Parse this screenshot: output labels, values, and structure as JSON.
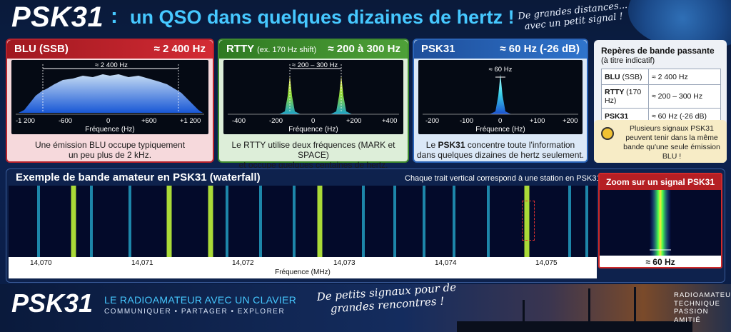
{
  "header": {
    "title": "PSK31",
    "colon": ":",
    "subtitle": "un QSO dans quelques dizaines de hertz !",
    "tagline": "De grandes distances... avec un petit signal !"
  },
  "panels": {
    "blu": {
      "title": "BLU (SSB)",
      "bandwidth": "≈ 2 400 Hz",
      "marker": "≈ 2 400 Hz",
      "ticks": [
        "-1 200",
        "-600",
        "0",
        "+600",
        "+1 200"
      ],
      "xlabel": "Fréquence (Hz)",
      "caption_1": "Une émission BLU occupe typiquement",
      "caption_2": "un peu plus de 2 kHz."
    },
    "rtty": {
      "title": "RTTY",
      "title_note": "(ex. 170 Hz shift)",
      "bandwidth": "≈ 200 à 300 Hz",
      "marker": "≈ 200 – 300 Hz",
      "ticks": [
        "-400",
        "-200",
        "0",
        "+200",
        "+400"
      ],
      "xlabel": "Fréquence (Hz)",
      "caption_1": "Le RTTY utilise deux fréquences (MARK et SPACE)",
      "caption_2": "et occupe quelques centaines de hertz."
    },
    "psk": {
      "title": "PSK31",
      "bandwidth": "≈ 60 Hz (-26 dB)",
      "marker": "≈ 60 Hz",
      "ticks": [
        "-200",
        "-100",
        "0",
        "+100",
        "+200"
      ],
      "xlabel": "Fréquence (Hz)",
      "caption_1a": "Le ",
      "caption_1b": "PSK31",
      "caption_1c": " concentre toute l'information",
      "caption_2": "dans quelques dizaines de hertz seulement."
    }
  },
  "reference": {
    "title": "Repères de bande passante",
    "subtitle": "(à titre indicatif)",
    "rows": [
      {
        "mode": "BLU",
        "note": "(SSB)",
        "value": "≈ 2 400 Hz"
      },
      {
        "mode": "RTTY",
        "note": "(170 Hz)",
        "value": "≈ 200 – 300 Hz"
      },
      {
        "mode": "PSK31",
        "note": "",
        "value": "≈ 60 Hz (-26 dB)"
      }
    ]
  },
  "tip": {
    "text": "Plusieurs signaux PSK31 peuvent tenir dans la même bande qu'une seule émission BLU !"
  },
  "waterfall": {
    "title": "Exemple de bande amateur en PSK31 (waterfall)",
    "note": "Chaque trait vertical correspond à une station en PSK31.",
    "ticks": [
      "14,070",
      "14,071",
      "14,072",
      "14,073",
      "14,074",
      "14,075"
    ],
    "xlabel": "Fréquence (MHz)",
    "zoom_title": "Zoom sur un signal PSK31",
    "zoom_bandwidth": "≈ 60 Hz"
  },
  "footer": {
    "logo": "PSK31",
    "line1": "LE RADIOAMATEUR AVEC UN CLAVIER",
    "line2": "COMMUNIQUER  •  PARTAGER  •  EXPLORER",
    "slogan": "De petits signaux pour de grandes rencontres !",
    "right": [
      "RADIOAMATEURS",
      "TECHNIQUE",
      "PASSION",
      "AMITIÉ"
    ]
  }
}
